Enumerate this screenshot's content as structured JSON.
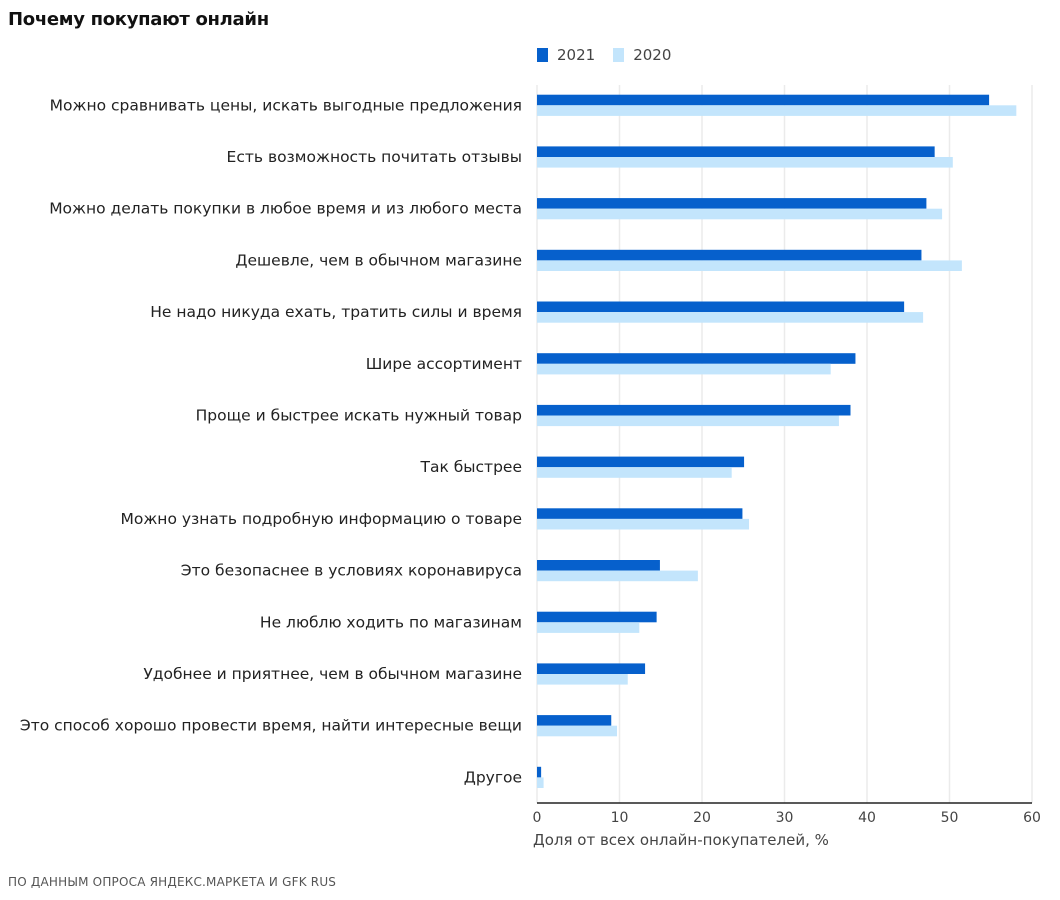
{
  "chart_data": {
    "type": "bar",
    "orientation": "horizontal",
    "title": "Почему покупают онлайн",
    "xlabel": "Доля от всех онлайн-покупателей, %",
    "ylabel": "",
    "xlim": [
      0,
      60
    ],
    "xticks": [
      "0",
      "10",
      "20",
      "30",
      "40",
      "50",
      "60"
    ],
    "xtick_values": [
      0,
      10,
      20,
      30,
      40,
      50,
      60
    ],
    "grid": "vertical",
    "legend_position": "top",
    "categories": [
      "Можно сравнивать цены, искать выгодные предложения",
      "Есть возможность почитать отзывы",
      "Можно делать покупки в любое время и из любого места",
      "Дешевле, чем в обычном магазине",
      "Не надо никуда ехать, тратить силы и время",
      "Шире ассортимент",
      "Проще и быстрее искать нужный товар",
      "Так быстрее",
      "Можно узнать подробную информацию о товаре",
      "Это безопаснее в условиях коронавируса",
      "Не люблю ходить по магазинам",
      "Удобнее и приятнее, чем в обычном магазине",
      "Это способ хорошо провести время, найти интересные вещи",
      "Другое"
    ],
    "series": [
      {
        "name": "2021",
        "color": "#0660cc",
        "values": [
          54.8,
          48.2,
          47.2,
          46.6,
          44.5,
          38.6,
          38.0,
          25.1,
          24.9,
          14.9,
          14.5,
          13.1,
          9.0,
          0.5
        ]
      },
      {
        "name": "2020",
        "color": "#c3e5fc",
        "values": [
          58.1,
          50.4,
          49.1,
          51.5,
          46.8,
          35.6,
          36.6,
          23.6,
          25.7,
          19.5,
          12.4,
          11.0,
          9.7,
          0.8
        ]
      }
    ]
  },
  "source": "ПО ДАННЫМ ОПРОСА ЯНДЕКС.МАРКЕТА И GFK RUS"
}
